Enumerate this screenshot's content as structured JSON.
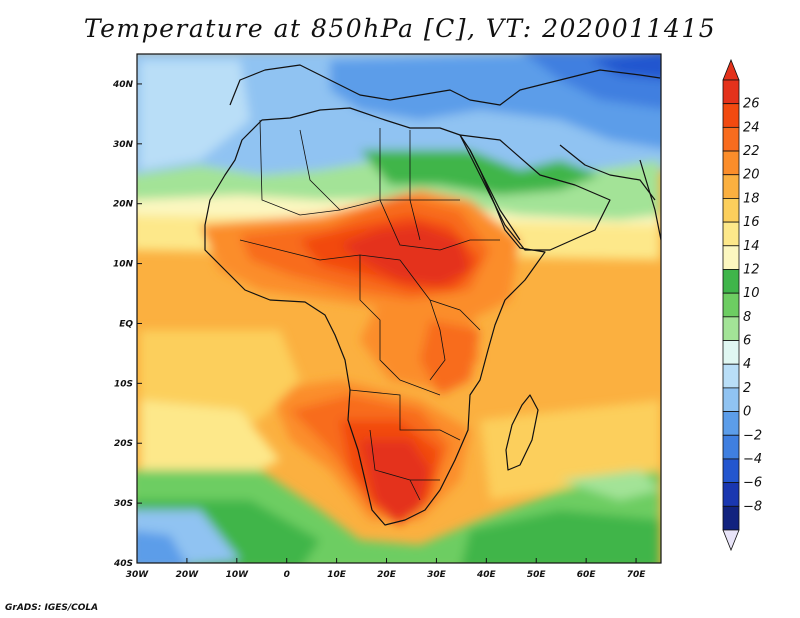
{
  "title": "Temperature at 850hPa [C], VT: 2020011415",
  "footer": "GrADS: IGES/COLA",
  "map": {
    "lon_range": [
      -30,
      75
    ],
    "lat_range": [
      -40,
      45
    ],
    "lon_ticks": [
      {
        "lon": -30,
        "label": "30W"
      },
      {
        "lon": -20,
        "label": "20W"
      },
      {
        "lon": -10,
        "label": "10W"
      },
      {
        "lon": 0,
        "label": "0"
      },
      {
        "lon": 10,
        "label": "10E"
      },
      {
        "lon": 20,
        "label": "20E"
      },
      {
        "lon": 30,
        "label": "30E"
      },
      {
        "lon": 40,
        "label": "40E"
      },
      {
        "lon": 50,
        "label": "50E"
      },
      {
        "lon": 60,
        "label": "60E"
      },
      {
        "lon": 70,
        "label": "70E"
      }
    ],
    "lat_ticks": [
      {
        "lat": 40,
        "label": "40N"
      },
      {
        "lat": 30,
        "label": "30N"
      },
      {
        "lat": 20,
        "label": "20N"
      },
      {
        "lat": 10,
        "label": "10N"
      },
      {
        "lat": 0,
        "label": "EQ"
      },
      {
        "lat": -10,
        "label": "10S"
      },
      {
        "lat": -20,
        "label": "20S"
      },
      {
        "lat": -30,
        "label": "30S"
      },
      {
        "lat": -40,
        "label": "40S"
      }
    ]
  },
  "colorbar": {
    "labels": [
      "26",
      "24",
      "22",
      "20",
      "18",
      "16",
      "14",
      "12",
      "10",
      "8",
      "6",
      "4",
      "2",
      "0",
      "−2",
      "−4",
      "−6",
      "−8"
    ],
    "colors_top_to_bottom": [
      "#e4321b",
      "#f24a10",
      "#f86c1e",
      "#fb8d2a",
      "#fbb040",
      "#fccf5c",
      "#fde88a",
      "#fcf7c0",
      "#3fb54a",
      "#6dcd62",
      "#a3e397",
      "#e0f7f2",
      "#b9def7",
      "#90c3f2",
      "#5c9de9",
      "#3f7fe0",
      "#2356cf",
      "#1a37b0",
      "#12237f"
    ]
  }
}
